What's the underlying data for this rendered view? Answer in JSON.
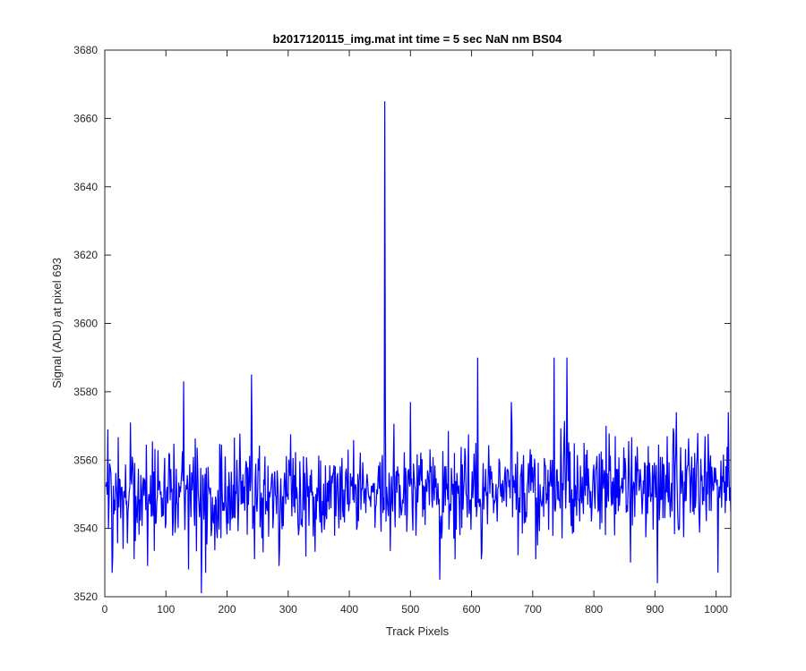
{
  "chart_data": {
    "type": "line",
    "title": "b2017120115_img.mat int time = 5 sec  NaN nm BS04",
    "xlabel": "Track Pixels",
    "ylabel": "Signal (ADU) at pixel 693",
    "xlim": [
      0,
      1024
    ],
    "ylim": [
      3520,
      3680
    ],
    "xticks": [
      0,
      100,
      200,
      300,
      400,
      500,
      600,
      700,
      800,
      900,
      1000
    ],
    "yticks": [
      3520,
      3540,
      3560,
      3580,
      3600,
      3620,
      3640,
      3660,
      3680
    ],
    "grid": false,
    "line_color": "#0000ff",
    "series": [
      {
        "x_start": 1,
        "x_end": 1024,
        "baseline_start": 3549,
        "baseline_end": 3553,
        "noise_amplitude": 7,
        "noise_seed": 20171201,
        "notable_points": [
          {
            "x": 5,
            "y": 3569
          },
          {
            "x": 12,
            "y": 3527
          },
          {
            "x": 30,
            "y": 3534
          },
          {
            "x": 42,
            "y": 3571
          },
          {
            "x": 48,
            "y": 3531
          },
          {
            "x": 70,
            "y": 3529
          },
          {
            "x": 129,
            "y": 3583
          },
          {
            "x": 137,
            "y": 3528
          },
          {
            "x": 158,
            "y": 3521
          },
          {
            "x": 165,
            "y": 3527
          },
          {
            "x": 240,
            "y": 3585
          },
          {
            "x": 245,
            "y": 3531
          },
          {
            "x": 285,
            "y": 3529
          },
          {
            "x": 458,
            "y": 3665
          },
          {
            "x": 459,
            "y": 3574
          },
          {
            "x": 460,
            "y": 3542
          },
          {
            "x": 500,
            "y": 3577
          },
          {
            "x": 548,
            "y": 3525
          },
          {
            "x": 610,
            "y": 3590
          },
          {
            "x": 616,
            "y": 3531
          },
          {
            "x": 665,
            "y": 3577
          },
          {
            "x": 705,
            "y": 3531
          },
          {
            "x": 735,
            "y": 3590
          },
          {
            "x": 756,
            "y": 3590
          },
          {
            "x": 835,
            "y": 3567
          },
          {
            "x": 860,
            "y": 3530
          },
          {
            "x": 904,
            "y": 3524
          },
          {
            "x": 920,
            "y": 3567
          },
          {
            "x": 935,
            "y": 3574
          },
          {
            "x": 1003,
            "y": 3527
          },
          {
            "x": 1020,
            "y": 3574
          }
        ]
      }
    ]
  }
}
